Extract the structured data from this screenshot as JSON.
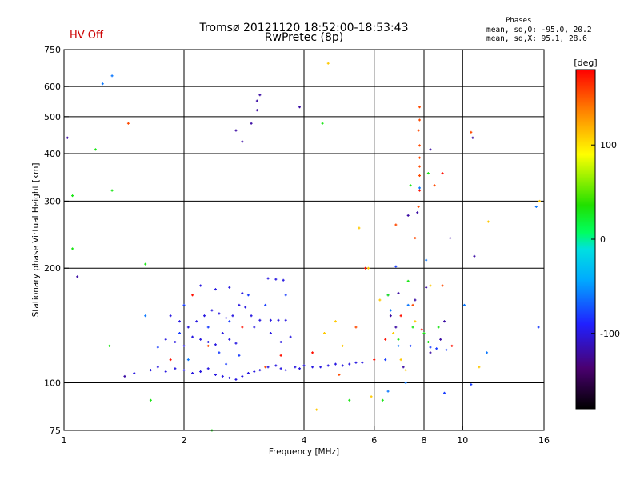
{
  "status": {
    "hv": "HV Off",
    "hv_color": "#cc0000"
  },
  "title": {
    "line1": "Tromsø 20121120 18:52:00-18:53:43",
    "line2": "RwPretec (8p)"
  },
  "phase_stats": {
    "heading": "Phases",
    "o_mode": "mean, sd,O: -95.0, 20.2",
    "x_mode": "mean, sd,X:  95.1, 28.6"
  },
  "chart_data": {
    "type": "scatter",
    "xlabel": "Frequency [MHz]",
    "ylabel": "Stationary phase Virtual Height [km]",
    "x_scale": "log",
    "y_scale": "log",
    "xlim": [
      1,
      16
    ],
    "ylim": [
      75,
      750
    ],
    "x_ticks": [
      1,
      2,
      4,
      6,
      8,
      10,
      16
    ],
    "x_tick_labels": [
      "1",
      "2",
      "4",
      "6",
      "8",
      "10",
      "16"
    ],
    "y_ticks": [
      75,
      100,
      200,
      300,
      400,
      500,
      600,
      750
    ],
    "y_tick_labels": [
      "75",
      "100",
      "200",
      "300",
      "400",
      "500",
      "600",
      "750"
    ],
    "grid_x": [
      2,
      4,
      6,
      8,
      10
    ],
    "grid_y": [
      100,
      200,
      300,
      400,
      500,
      600
    ],
    "grid": true,
    "colorbar": {
      "label": "[deg]",
      "range": [
        -180,
        180
      ],
      "ticks": [
        100,
        0,
        -100
      ],
      "tick_labels": [
        "100",
        "0",
        "-100"
      ]
    },
    "series": [
      {
        "color_value": -100,
        "points": [
          [
            1.5,
            106
          ],
          [
            1.65,
            108
          ],
          [
            1.72,
            110
          ],
          [
            1.8,
            107
          ],
          [
            1.9,
            109
          ],
          [
            2.0,
            108
          ],
          [
            2.1,
            106
          ],
          [
            2.2,
            107
          ],
          [
            2.3,
            109
          ],
          [
            2.4,
            105
          ],
          [
            2.5,
            104
          ],
          [
            2.6,
            103
          ],
          [
            2.7,
            102
          ],
          [
            2.8,
            104
          ],
          [
            2.9,
            106
          ],
          [
            3.0,
            107
          ],
          [
            3.1,
            108
          ],
          [
            3.25,
            110
          ],
          [
            3.4,
            111
          ],
          [
            3.5,
            109
          ],
          [
            3.6,
            108
          ],
          [
            3.8,
            110
          ],
          [
            3.9,
            109
          ],
          [
            4.0,
            111
          ],
          [
            4.2,
            110
          ],
          [
            4.4,
            110
          ],
          [
            4.6,
            111
          ],
          [
            4.8,
            112
          ],
          [
            5.0,
            111
          ],
          [
            5.2,
            112
          ],
          [
            5.4,
            113
          ],
          [
            5.6,
            113
          ],
          [
            1.85,
            150
          ],
          [
            1.95,
            145
          ],
          [
            2.05,
            140
          ],
          [
            2.15,
            145
          ],
          [
            2.25,
            150
          ],
          [
            2.35,
            155
          ],
          [
            2.45,
            152
          ],
          [
            2.55,
            148
          ],
          [
            2.65,
            150
          ],
          [
            2.75,
            160
          ],
          [
            2.85,
            158
          ],
          [
            2.95,
            150
          ],
          [
            3.1,
            146
          ],
          [
            3.3,
            146
          ],
          [
            3.45,
            146
          ],
          [
            3.6,
            146
          ],
          [
            3.25,
            188
          ],
          [
            3.4,
            187
          ],
          [
            3.55,
            186
          ],
          [
            2.2,
            180
          ],
          [
            2.4,
            176
          ],
          [
            2.6,
            178
          ],
          [
            2.8,
            172
          ],
          [
            1.8,
            130
          ],
          [
            1.9,
            128
          ],
          [
            2.0,
            125
          ],
          [
            2.1,
            132
          ],
          [
            2.2,
            130
          ],
          [
            2.3,
            128
          ],
          [
            2.4,
            126
          ],
          [
            2.5,
            135
          ],
          [
            2.6,
            130
          ],
          [
            2.7,
            127
          ],
          [
            3.0,
            140
          ],
          [
            3.3,
            135
          ],
          [
            3.5,
            128
          ],
          [
            3.7,
            132
          ]
        ]
      },
      {
        "color_value": -80,
        "points": [
          [
            1.72,
            124
          ],
          [
            2.0,
            160
          ],
          [
            2.3,
            140
          ],
          [
            2.6,
            145
          ],
          [
            2.9,
            170
          ],
          [
            3.2,
            160
          ],
          [
            3.6,
            170
          ],
          [
            1.95,
            135
          ],
          [
            2.45,
            120
          ],
          [
            2.75,
            118
          ],
          [
            2.55,
            112
          ],
          [
            6.5,
            170
          ],
          [
            6.8,
            202
          ],
          [
            7.4,
            125
          ],
          [
            8.3,
            124
          ],
          [
            8.6,
            123
          ],
          [
            9.1,
            122
          ],
          [
            10.5,
            99
          ],
          [
            15.5,
            140
          ],
          [
            9.0,
            94
          ],
          [
            6.4,
            115
          ]
        ]
      },
      {
        "color_value": -120,
        "points": [
          [
            1.08,
            190
          ],
          [
            1.02,
            440
          ],
          [
            1.42,
            104
          ],
          [
            2.7,
            460
          ],
          [
            2.8,
            430
          ],
          [
            2.95,
            480
          ],
          [
            3.05,
            520
          ],
          [
            3.1,
            570
          ],
          [
            3.05,
            550
          ],
          [
            3.9,
            530
          ],
          [
            7.3,
            275
          ],
          [
            7.7,
            280
          ],
          [
            9.3,
            240
          ],
          [
            10.6,
            440
          ],
          [
            8.3,
            410
          ],
          [
            10.7,
            215
          ],
          [
            7.1,
            110
          ],
          [
            6.9,
            172
          ],
          [
            6.6,
            150
          ],
          [
            6.8,
            140
          ],
          [
            8.1,
            178
          ],
          [
            8.3,
            120
          ],
          [
            7.6,
            165
          ],
          [
            8.8,
            130
          ],
          [
            9.0,
            145
          ]
        ]
      },
      {
        "color_value": -60,
        "points": [
          [
            1.25,
            610
          ],
          [
            1.32,
            640
          ],
          [
            7.8,
            325
          ],
          [
            8.1,
            210
          ],
          [
            15.3,
            290
          ],
          [
            6.6,
            155
          ],
          [
            7.3,
            160
          ],
          [
            6.9,
            125
          ],
          [
            10.1,
            160
          ],
          [
            11.5,
            120
          ],
          [
            7.2,
            100
          ],
          [
            6.5,
            95
          ],
          [
            1.6,
            150
          ],
          [
            2.05,
            115
          ]
        ]
      },
      {
        "color_value": 30,
        "points": [
          [
            1.05,
            310
          ],
          [
            1.05,
            225
          ],
          [
            1.2,
            410
          ],
          [
            1.32,
            320
          ],
          [
            1.6,
            205
          ],
          [
            1.3,
            125
          ],
          [
            1.65,
            90
          ],
          [
            2.35,
            75
          ],
          [
            4.45,
            480
          ],
          [
            7.4,
            330
          ],
          [
            8.2,
            355
          ],
          [
            6.9,
            130
          ],
          [
            7.5,
            140
          ],
          [
            8.0,
            135
          ],
          [
            8.2,
            128
          ],
          [
            8.7,
            140
          ],
          [
            6.3,
            90
          ],
          [
            5.2,
            90
          ],
          [
            6.5,
            170
          ],
          [
            7.3,
            185
          ]
        ]
      },
      {
        "color_value": 110,
        "points": [
          [
            4.6,
            690
          ],
          [
            5.5,
            255
          ],
          [
            5.8,
            200
          ],
          [
            6.2,
            165
          ],
          [
            6.7,
            135
          ],
          [
            7.0,
            115
          ],
          [
            7.2,
            108
          ],
          [
            4.3,
            85
          ],
          [
            5.9,
            92
          ],
          [
            7.6,
            145
          ],
          [
            8.3,
            180
          ],
          [
            11.6,
            265
          ],
          [
            15.6,
            300
          ],
          [
            4.5,
            135
          ],
          [
            5.0,
            125
          ],
          [
            4.8,
            145
          ],
          [
            11.0,
            110
          ]
        ]
      },
      {
        "color_value": 155,
        "points": [
          [
            7.8,
            530
          ],
          [
            7.8,
            490
          ],
          [
            7.75,
            460
          ],
          [
            7.8,
            420
          ],
          [
            7.8,
            390
          ],
          [
            7.8,
            370
          ],
          [
            7.8,
            350
          ],
          [
            7.75,
            290
          ],
          [
            6.8,
            260
          ],
          [
            7.6,
            240
          ],
          [
            8.5,
            330
          ],
          [
            10.5,
            455
          ],
          [
            1.45,
            480
          ],
          [
            7.5,
            160
          ],
          [
            8.9,
            180
          ],
          [
            5.4,
            140
          ],
          [
            3.2,
            110
          ],
          [
            2.3,
            125
          ],
          [
            4.9,
            105
          ]
        ]
      },
      {
        "color_value": 175,
        "points": [
          [
            8.9,
            355
          ],
          [
            7.8,
            320
          ],
          [
            5.7,
            200
          ],
          [
            6.4,
            130
          ],
          [
            7.0,
            150
          ],
          [
            7.9,
            138
          ],
          [
            4.2,
            120
          ],
          [
            3.5,
            118
          ],
          [
            2.8,
            140
          ],
          [
            2.1,
            170
          ],
          [
            1.85,
            115
          ],
          [
            6.0,
            115
          ],
          [
            9.4,
            125
          ]
        ]
      }
    ]
  }
}
